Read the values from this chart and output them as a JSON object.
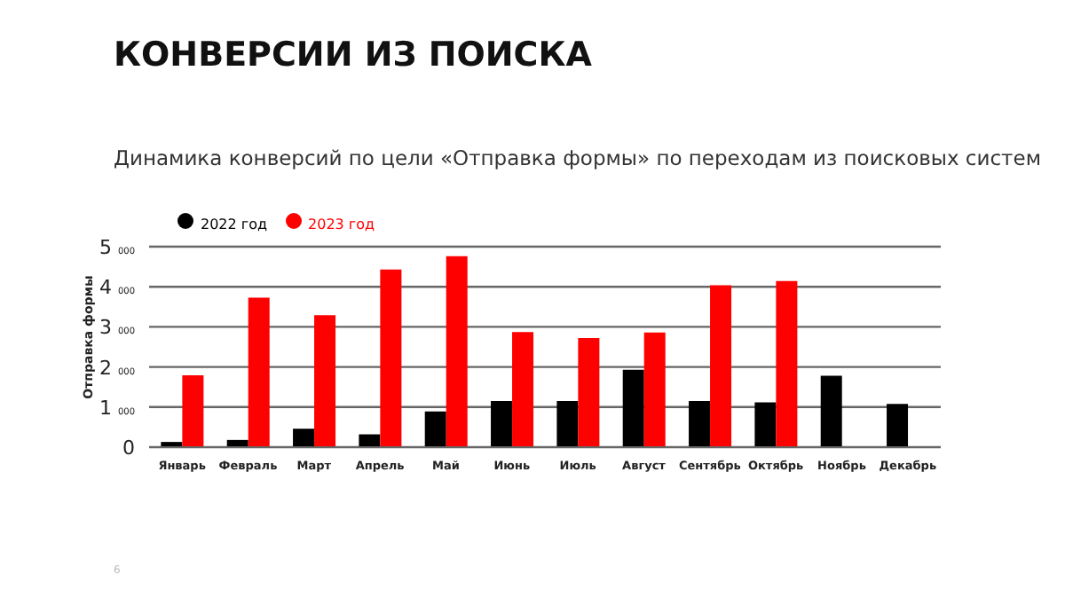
{
  "chart_data": {
    "type": "bar",
    "title": "КОНВЕРСИИ ИЗ ПОИСКА",
    "subtitle": "Динамика конверсий по цели «Отправка формы» по переходам из поисковых систем",
    "ylabel": "Отправка формы",
    "categories": [
      "Январь",
      "Февраль",
      "Март",
      "Апрель",
      "Май",
      "Июнь",
      "Июль",
      "Август",
      "Сентябрь",
      "Октябрь",
      "Ноябрь",
      "Декабрь"
    ],
    "series": [
      {
        "name": "2022 год",
        "color": "#000000",
        "values": [
          130,
          180,
          460,
          320,
          890,
          1150,
          1150,
          1930,
          1150,
          1120,
          1780,
          1080
        ]
      },
      {
        "name": "2023 год",
        "color": "#ff0000",
        "values": [
          1790,
          3730,
          3290,
          4430,
          4760,
          2870,
          2720,
          2860,
          4040,
          4140,
          null,
          null
        ]
      }
    ],
    "ylim": [
      0,
      5000
    ],
    "yticks": [
      0,
      {
        "value": 1000,
        "label": "1 000"
      },
      {
        "value": 2000,
        "label": "2 000"
      },
      {
        "value": 3000,
        "label": "3 000"
      },
      {
        "value": 4000,
        "label": "4 000"
      },
      {
        "value": 5000,
        "label": "5 000"
      }
    ],
    "grid": "y",
    "legend": "top left",
    "annotations": [
      "6"
    ]
  }
}
